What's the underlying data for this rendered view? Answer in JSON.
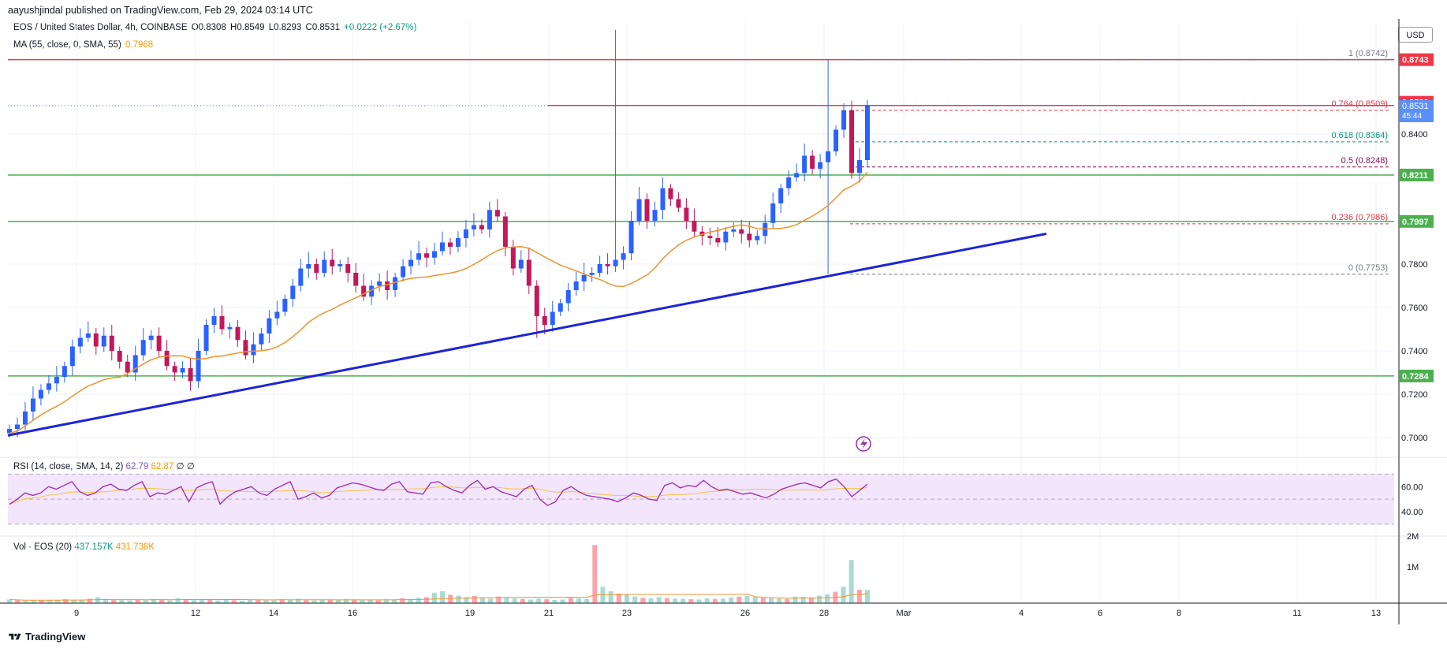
{
  "publisher": "aayushjindal published on TradingView.com, Feb 29, 2024 03:14 UTC",
  "symbol_line": {
    "symbol": "EOS / United States Dollar, 4h, COINBASE",
    "open": "O0.8308",
    "high": "H0.8549",
    "low": "L0.8293",
    "close": "C0.8531",
    "change": "+0.0222 (+2.67%)"
  },
  "ma_line": {
    "label": "MA (55, close, 0, SMA, 55)",
    "value": "0.7968"
  },
  "rsi_legend": {
    "label": "RSI (14, close, SMA, 14, 2)",
    "value": "62.79",
    "sma_value": "62.87",
    "extra1": "∅",
    "extra2": "∅"
  },
  "vol_legend": {
    "label": "Vol · EOS (20)",
    "value": "437.157K",
    "ma_value": "431.738K"
  },
  "currency": "USD",
  "brand": "TradingView",
  "colors": {
    "up": "#2962ff",
    "down": "#c2185b",
    "trendline": "#1e24d4",
    "ma": "#f0932b",
    "resistance": "#f23645",
    "support": "#4caf50",
    "rsi_line": "#9c27b0",
    "rsi_bg": "#f3e5fc"
  },
  "chart_data": {
    "type": "candlestick",
    "interval": "4h",
    "symbol": "EOS / United States Dollar",
    "x_ticks": [
      "9",
      "12",
      "14",
      "16",
      "19",
      "21",
      "23",
      "26",
      "28",
      "Mar",
      "4",
      "6",
      "8",
      "11",
      "13"
    ],
    "y_ticks": [
      "0.8400",
      "0.7800",
      "0.7600",
      "0.7400",
      "0.7200",
      "0.7000"
    ],
    "y_range": [
      0.689,
      0.888
    ],
    "price_labels": [
      {
        "value": 0.8743,
        "text": "0.8743",
        "kind": "resistance"
      },
      {
        "value": 0.8532,
        "text": "0.8532",
        "kind": "resistance"
      },
      {
        "value": 0.8531,
        "text": "0.8531",
        "sub": "45:44",
        "kind": "last"
      },
      {
        "value": 0.8211,
        "text": "0.8211",
        "kind": "support"
      },
      {
        "value": 0.7997,
        "text": "0.7997",
        "kind": "support"
      },
      {
        "value": 0.7284,
        "text": "0.7284",
        "kind": "support"
      }
    ],
    "fibonacci": [
      {
        "level": "1",
        "price": 0.8742,
        "text": "1 (0.8742)",
        "color": "#787b86"
      },
      {
        "level": "0.764",
        "price": 0.8509,
        "text": "0.764 (0.8509)",
        "color": "#f23645"
      },
      {
        "level": "0.618",
        "price": 0.8364,
        "text": "0.618 (0.8364)",
        "color": "#089981"
      },
      {
        "level": "0.5",
        "price": 0.8248,
        "text": "0.5 (0.8248)",
        "color": "#880e4f"
      },
      {
        "level": "0.236",
        "price": 0.7986,
        "text": "0.236 (0.7986)",
        "color": "#f23645"
      },
      {
        "level": "0",
        "price": 0.7753,
        "text": "0 (0.7753)",
        "color": "#787b86"
      }
    ],
    "trendline": {
      "start": {
        "date": "Feb 8",
        "price": 0.701
      },
      "end": {
        "date": "Mar 4",
        "price": 0.794
      }
    },
    "rsi_ticks": [
      "60.00",
      "40.00"
    ],
    "rsi_values": [
      46,
      50,
      55,
      53,
      55,
      60,
      58,
      61,
      64,
      56,
      53,
      55,
      60,
      62,
      58,
      57,
      61,
      64,
      52,
      55,
      54,
      57,
      60,
      48,
      59,
      62,
      64,
      46,
      52,
      56,
      58,
      60,
      55,
      53,
      58,
      61,
      64,
      50,
      52,
      55,
      51,
      53,
      59,
      61,
      63,
      62,
      60,
      58,
      57,
      62,
      64,
      56,
      55,
      54,
      63,
      64,
      60,
      57,
      55,
      61,
      65,
      58,
      60,
      56,
      54,
      52,
      58,
      61,
      50,
      45,
      48,
      57,
      60,
      56,
      53,
      52,
      51,
      50,
      48,
      51,
      55,
      53,
      50,
      49,
      61,
      63,
      59,
      61,
      60,
      65,
      60,
      57,
      58,
      56,
      54,
      55,
      53,
      51,
      54,
      58,
      60,
      62,
      63,
      61,
      59,
      64,
      66,
      60,
      52,
      57,
      62
    ],
    "vol_ticks": [
      "2M",
      "1M"
    ],
    "volumes": [
      0.12,
      0.1,
      0.08,
      0.1,
      0.09,
      0.11,
      0.1,
      0.13,
      0.09,
      0.12,
      0.15,
      0.2,
      0.14,
      0.11,
      0.1,
      0.09,
      0.12,
      0.1,
      0.14,
      0.11,
      0.09,
      0.16,
      0.13,
      0.1,
      0.12,
      0.11,
      0.09,
      0.13,
      0.1,
      0.08,
      0.11,
      0.12,
      0.1,
      0.09,
      0.13,
      0.11,
      0.15,
      0.1,
      0.09,
      0.12,
      0.11,
      0.1,
      0.14,
      0.12,
      0.1,
      0.11,
      0.09,
      0.13,
      0.12,
      0.16,
      0.14,
      0.18,
      0.2,
      0.35,
      0.4,
      0.28,
      0.25,
      0.2,
      0.24,
      0.18,
      0.15,
      0.22,
      0.19,
      0.16,
      0.14,
      0.12,
      0.15,
      0.13,
      0.11,
      0.12,
      0.18,
      0.16,
      0.14,
      1.95,
      0.55,
      0.4,
      0.32,
      0.28,
      0.22,
      0.18,
      0.16,
      0.2,
      0.17,
      0.15,
      0.14,
      0.13,
      0.12,
      0.16,
      0.14,
      0.15,
      0.19,
      0.22,
      0.24,
      0.2,
      0.18,
      0.16,
      0.15,
      0.14,
      0.22,
      0.21,
      0.19,
      0.25,
      0.3,
      0.38,
      0.55,
      1.45,
      0.45,
      0.44
    ]
  }
}
